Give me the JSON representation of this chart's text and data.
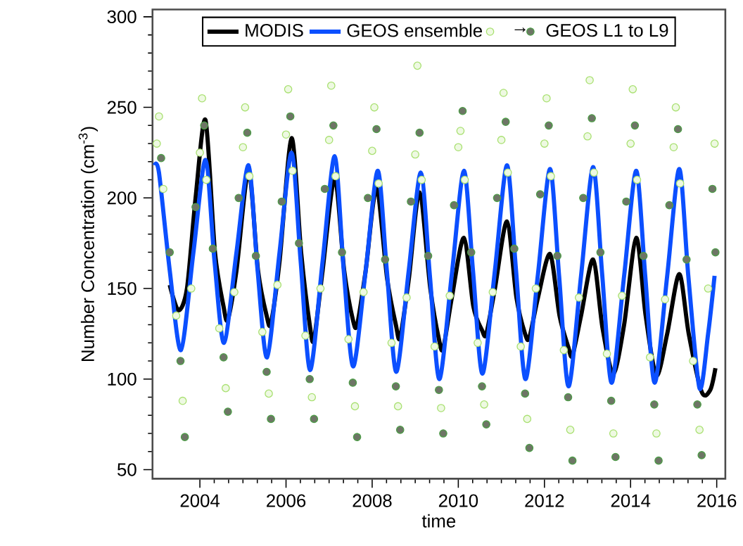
{
  "chart_data": {
    "type": "line",
    "xlabel": "time",
    "ylabel": "Number Concentration (cm$^{-3}$)",
    "xlim": [
      2002.9,
      2016.2
    ],
    "ylim": [
      45,
      304
    ],
    "xticks": [
      2004,
      2006,
      2008,
      2010,
      2012,
      2014,
      2016
    ],
    "yticks": [
      50,
      100,
      150,
      200,
      250,
      300
    ],
    "legend": "top",
    "grid": false,
    "annotations": [
      "→"
    ],
    "series": [
      {
        "type": "scatter",
        "color": "#a8e070",
        "marker": "circle",
        "x": [
          2003.0,
          2003.05,
          2003.15,
          2003.45,
          2003.6,
          2003.8,
          2004.0,
          2004.05,
          2004.15,
          2004.45,
          2004.6,
          2004.8,
          2005.0,
          2005.05,
          2005.15,
          2005.45,
          2005.6,
          2005.8,
          2006.0,
          2006.05,
          2006.15,
          2006.45,
          2006.6,
          2006.8,
          2007.0,
          2007.05,
          2007.15,
          2007.45,
          2007.6,
          2007.8,
          2008.0,
          2008.05,
          2008.15,
          2008.45,
          2008.6,
          2008.8,
          2009.0,
          2009.05,
          2009.15,
          2009.45,
          2009.6,
          2009.8,
          2010.0,
          2010.05,
          2010.15,
          2010.45,
          2010.6,
          2010.8,
          2011.0,
          2011.05,
          2011.15,
          2011.45,
          2011.6,
          2011.8,
          2012.0,
          2012.05,
          2012.15,
          2012.45,
          2012.6,
          2012.8,
          2013.0,
          2013.05,
          2013.15,
          2013.45,
          2013.6,
          2013.8,
          2014.0,
          2014.05,
          2014.15,
          2014.45,
          2014.6,
          2014.8,
          2015.0,
          2015.05,
          2015.15,
          2015.45,
          2015.6,
          2015.8,
          2015.95
        ],
        "values": [
          230,
          245,
          205,
          135,
          88,
          150,
          225,
          255,
          210,
          128,
          95,
          148,
          228,
          250,
          212,
          126,
          92,
          152,
          235,
          260,
          215,
          124,
          90,
          150,
          232,
          262,
          212,
          122,
          85,
          148,
          226,
          250,
          208,
          120,
          85,
          145,
          224,
          273,
          210,
          118,
          84,
          146,
          228,
          237,
          210,
          120,
          86,
          148,
          232,
          258,
          214,
          118,
          78,
          150,
          230,
          255,
          212,
          116,
          72,
          145,
          234,
          265,
          214,
          114,
          70,
          146,
          230,
          260,
          210,
          112,
          70,
          144,
          228,
          250,
          208,
          110,
          72,
          150,
          230
        ]
      },
      {
        "type": "scatter",
        "name": "GEOS L1 to L9",
        "color": "#6e7566",
        "marker": "circle",
        "x": [
          2003.1,
          2003.3,
          2003.55,
          2003.65,
          2003.9,
          2004.1,
          2004.3,
          2004.55,
          2004.65,
          2004.9,
          2005.1,
          2005.3,
          2005.55,
          2005.65,
          2005.9,
          2006.1,
          2006.3,
          2006.55,
          2006.65,
          2006.9,
          2007.1,
          2007.3,
          2007.55,
          2007.65,
          2007.9,
          2008.1,
          2008.3,
          2008.55,
          2008.65,
          2008.9,
          2009.1,
          2009.3,
          2009.55,
          2009.65,
          2009.9,
          2010.1,
          2010.3,
          2010.55,
          2010.65,
          2010.9,
          2011.1,
          2011.3,
          2011.55,
          2011.65,
          2011.9,
          2012.1,
          2012.3,
          2012.55,
          2012.65,
          2012.9,
          2013.1,
          2013.3,
          2013.55,
          2013.65,
          2013.9,
          2014.1,
          2014.3,
          2014.55,
          2014.65,
          2014.9,
          2015.1,
          2015.3,
          2015.55,
          2015.65,
          2015.9,
          2015.97
        ],
        "values": [
          222,
          170,
          110,
          68,
          195,
          240,
          172,
          112,
          82,
          200,
          236,
          168,
          104,
          78,
          198,
          245,
          175,
          100,
          78,
          205,
          240,
          170,
          98,
          68,
          200,
          238,
          166,
          96,
          72,
          198,
          236,
          168,
          94,
          70,
          196,
          248,
          170,
          96,
          75,
          200,
          242,
          172,
          92,
          62,
          202,
          240,
          168,
          90,
          55,
          200,
          244,
          170,
          88,
          57,
          198,
          240,
          168,
          86,
          55,
          196,
          238,
          166,
          86,
          58,
          205,
          170
        ]
      },
      {
        "name": "MODIS",
        "color": "#000000",
        "x": [
          2003.3,
          2003.5,
          2003.7,
          2003.9,
          2004.13,
          2004.35,
          2004.55,
          2004.65,
          2004.85,
          2005.13,
          2005.35,
          2005.55,
          2005.65,
          2005.85,
          2006.13,
          2006.35,
          2006.55,
          2006.65,
          2006.85,
          2007.13,
          2007.35,
          2007.55,
          2007.65,
          2007.85,
          2008.1,
          2008.35,
          2008.55,
          2008.65,
          2008.85,
          2009.1,
          2009.35,
          2009.55,
          2009.65,
          2009.85,
          2010.13,
          2010.35,
          2010.55,
          2010.65,
          2010.85,
          2011.13,
          2011.35,
          2011.55,
          2011.65,
          2011.85,
          2012.13,
          2012.35,
          2012.55,
          2012.65,
          2012.85,
          2013.13,
          2013.35,
          2013.6,
          2013.85,
          2014.13,
          2014.35,
          2014.6,
          2014.85,
          2015.13,
          2015.35,
          2015.65,
          2015.85,
          2015.97
        ],
        "values": [
          152,
          138,
          150,
          200,
          243,
          170,
          140,
          133,
          160,
          215,
          160,
          135,
          131,
          165,
          233,
          170,
          130,
          122,
          160,
          211,
          160,
          133,
          130,
          160,
          205,
          155,
          130,
          123,
          155,
          203,
          150,
          122,
          117,
          145,
          178,
          140,
          127,
          125,
          150,
          187,
          145,
          125,
          123,
          145,
          169,
          135,
          118,
          113,
          135,
          166,
          128,
          103,
          130,
          178,
          135,
          102,
          125,
          158,
          125,
          93,
          94,
          106
        ]
      },
      {
        "name": "GEOS ensemble",
        "color": "#0b4fff",
        "x": [
          2002.95,
          2003.05,
          2003.3,
          2003.56,
          2003.85,
          2004.13,
          2004.34,
          2004.56,
          2004.85,
          2005.13,
          2005.34,
          2005.56,
          2005.85,
          2006.13,
          2006.34,
          2006.56,
          2006.85,
          2007.13,
          2007.34,
          2007.56,
          2007.85,
          2008.13,
          2008.34,
          2008.56,
          2008.85,
          2009.13,
          2009.34,
          2009.56,
          2009.85,
          2010.13,
          2010.34,
          2010.56,
          2010.85,
          2011.13,
          2011.34,
          2011.56,
          2011.85,
          2012.13,
          2012.34,
          2012.56,
          2012.85,
          2013.13,
          2013.34,
          2013.56,
          2013.85,
          2014.13,
          2014.34,
          2014.56,
          2014.85,
          2015.13,
          2015.34,
          2015.6,
          2015.8,
          2015.95
        ],
        "values": [
          218,
          214,
          160,
          116,
          170,
          221,
          165,
          120,
          170,
          218,
          160,
          112,
          170,
          225,
          165,
          105,
          165,
          223,
          160,
          107,
          160,
          215,
          160,
          104,
          160,
          214,
          157,
          100,
          158,
          215,
          160,
          103,
          160,
          218,
          160,
          100,
          158,
          216,
          157,
          96,
          157,
          217,
          158,
          98,
          157,
          215,
          157,
          98,
          157,
          216,
          157,
          95,
          125,
          157
        ]
      }
    ]
  }
}
